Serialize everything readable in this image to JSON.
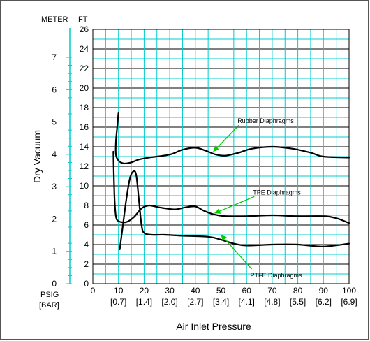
{
  "chart_data": {
    "type": "line",
    "title": "",
    "xlabel": "Air Inlet Pressure",
    "ylabel": "Dry Vacuum",
    "xlim": [
      0,
      100
    ],
    "ylim_ft": [
      0,
      26
    ],
    "ylim_meter": [
      0,
      8
    ],
    "x_unit_top": "PSIG",
    "x_unit_bottom": "[BAR]",
    "y_unit_left": "METER",
    "y_unit_right": "FT",
    "x_ticks": [
      0,
      10,
      20,
      30,
      40,
      50,
      60,
      70,
      80,
      90,
      100
    ],
    "x_bar_ticks": [
      {
        "x": 10,
        "label": "[0.7]"
      },
      {
        "x": 20,
        "label": "[1.4]"
      },
      {
        "x": 30,
        "label": "[2.0]"
      },
      {
        "x": 40,
        "label": "[2.7]"
      },
      {
        "x": 50,
        "label": "[3.4]"
      },
      {
        "x": 60,
        "label": "[4.1]"
      },
      {
        "x": 70,
        "label": "[4.8]"
      },
      {
        "x": 80,
        "label": "[5.5]"
      },
      {
        "x": 90,
        "label": "[6.2]"
      },
      {
        "x": 100,
        "label": "[6.9]"
      }
    ],
    "y_ticks_ft": [
      0,
      2,
      4,
      6,
      8,
      10,
      12,
      14,
      16,
      18,
      20,
      22,
      24,
      26
    ],
    "y_ticks_meter": [
      0,
      1,
      2,
      3,
      4,
      5,
      6,
      7
    ],
    "grid": true,
    "series": [
      {
        "name": "Rubber Diaphragms",
        "points": [
          [
            10,
            17.5
          ],
          [
            9.5,
            16
          ],
          [
            9,
            14.5
          ],
          [
            9,
            13.2
          ],
          [
            10,
            12.6
          ],
          [
            12,
            12.3
          ],
          [
            15,
            12.4
          ],
          [
            18,
            12.7
          ],
          [
            22,
            12.9
          ],
          [
            30,
            13.2
          ],
          [
            35,
            13.7
          ],
          [
            40,
            13.9
          ],
          [
            44,
            13.6
          ],
          [
            48,
            13.2
          ],
          [
            52,
            13.1
          ],
          [
            57,
            13.4
          ],
          [
            62,
            13.8
          ],
          [
            70,
            14.0
          ],
          [
            78,
            13.8
          ],
          [
            85,
            13.4
          ],
          [
            90,
            13.0
          ],
          [
            100,
            12.9
          ]
        ]
      },
      {
        "name": "TPE Diaphragms",
        "points": [
          [
            8,
            13.5
          ],
          [
            8.2,
            11
          ],
          [
            8.5,
            8.5
          ],
          [
            9,
            6.9
          ],
          [
            10,
            6.4
          ],
          [
            13,
            6.3
          ],
          [
            16,
            6.8
          ],
          [
            19,
            7.7
          ],
          [
            22,
            8.0
          ],
          [
            26,
            7.8
          ],
          [
            32,
            7.6
          ],
          [
            36,
            7.8
          ],
          [
            40,
            7.9
          ],
          [
            43,
            7.5
          ],
          [
            47,
            7.1
          ],
          [
            52,
            6.9
          ],
          [
            60,
            6.9
          ],
          [
            70,
            7.0
          ],
          [
            80,
            6.9
          ],
          [
            90,
            6.9
          ],
          [
            95,
            6.7
          ],
          [
            100,
            6.2
          ]
        ]
      },
      {
        "name": "PTFE Diaphragms",
        "points": [
          [
            10.5,
            3.5
          ],
          [
            11.5,
            5.5
          ],
          [
            13,
            8.5
          ],
          [
            14.5,
            10.8
          ],
          [
            16,
            11.5
          ],
          [
            17,
            11
          ],
          [
            18,
            8.5
          ],
          [
            19,
            6
          ],
          [
            20,
            5.2
          ],
          [
            23,
            5.0
          ],
          [
            28,
            5.0
          ],
          [
            35,
            4.9
          ],
          [
            45,
            4.8
          ],
          [
            50,
            4.5
          ],
          [
            55,
            4.1
          ],
          [
            60,
            3.9
          ],
          [
            70,
            4.0
          ],
          [
            80,
            4.0
          ],
          [
            90,
            3.8
          ],
          [
            100,
            4.1
          ]
        ]
      }
    ],
    "annotations": [
      {
        "text": "Rubber Diaphragms",
        "points_to": [
          47,
          13.5
        ],
        "label_at": [
          57,
          16.2
        ]
      },
      {
        "text": "TPE Diaphragms",
        "points_to": [
          47.5,
          7.2
        ],
        "label_at": [
          63,
          8.9
        ]
      },
      {
        "text": "PTFE Diaphragms",
        "points_to": [
          50,
          5.0
        ],
        "label_at": [
          62,
          1.5
        ]
      }
    ],
    "annotation_color": "#00cc00",
    "grid_color": "#00cccc",
    "minor_grid_color": "#99e6e6",
    "line_color": "#000000"
  }
}
